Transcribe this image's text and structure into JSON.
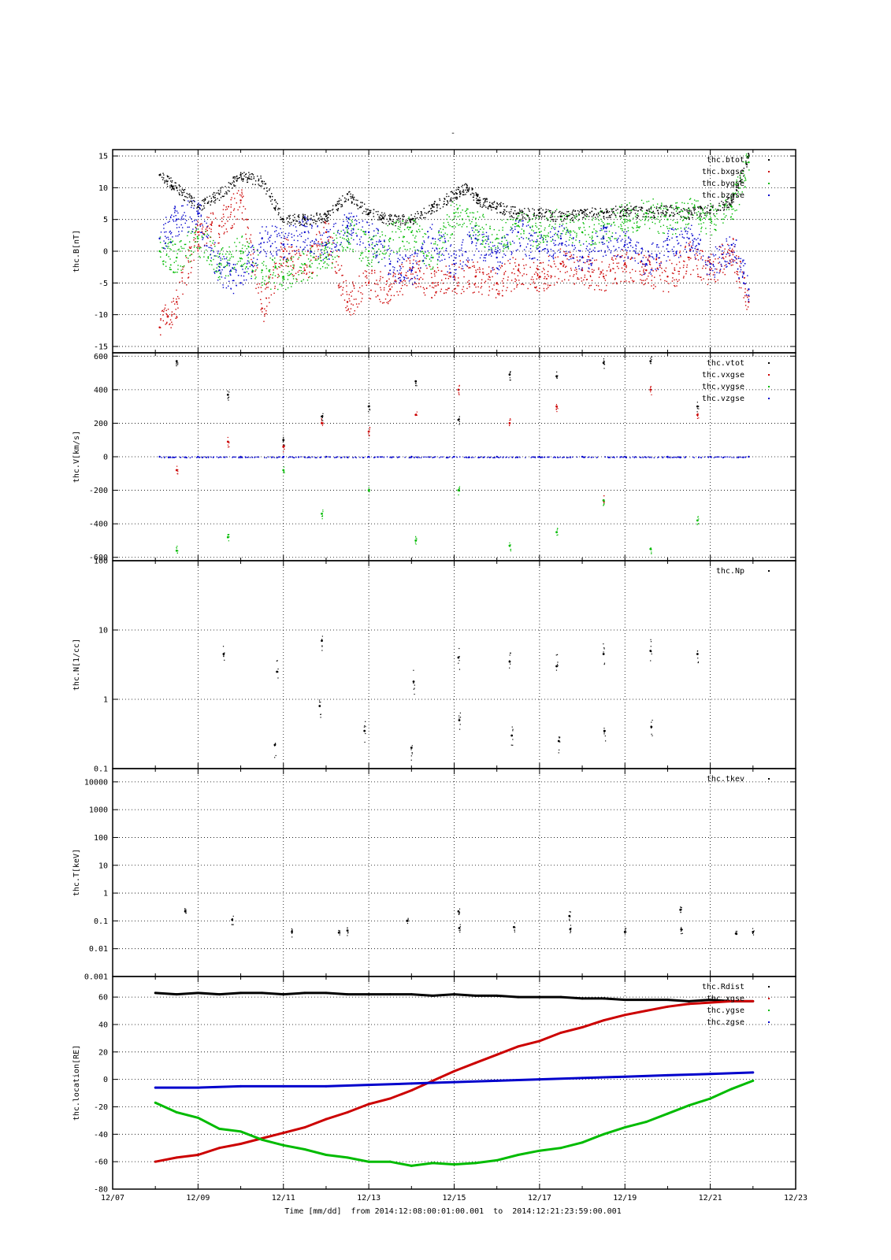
{
  "figure": {
    "title": "-",
    "xlabel": "Time [mm/dd]  from 2014:12:08:00:01:00.001  to  2014:12:21:23:59:00.001",
    "x_ticks": [
      "12/07",
      "12/09",
      "12/11",
      "12/13",
      "12/15",
      "12/17",
      "12/19",
      "12/21",
      "12/23"
    ]
  },
  "chart_data": [
    {
      "type": "scatter",
      "ylabel": "thc.B[nT]",
      "xlim": [
        "12/07",
        "12/23"
      ],
      "ylim": [
        -16,
        16
      ],
      "yscale": "linear",
      "y_ticks": [
        -15,
        -10,
        -5,
        0,
        5,
        10,
        15
      ],
      "legend_position": "top-right",
      "series": [
        {
          "name": "thc.btot",
          "color": "#000000",
          "x": [
            8.1,
            8.5,
            9.0,
            9.5,
            10.0,
            10.5,
            11.0,
            11.5,
            12.0,
            12.5,
            13.0,
            13.5,
            14.0,
            14.5,
            15.0,
            15.3,
            15.6,
            16.0,
            16.5,
            17.0,
            17.5,
            18.0,
            18.5,
            19.0,
            19.5,
            20.0,
            20.5,
            21.0,
            21.5,
            21.9
          ],
          "y": [
            12,
            10,
            7,
            9,
            12,
            11,
            5,
            5,
            5.5,
            9,
            6,
            5,
            5,
            7,
            9,
            10,
            8,
            7,
            6,
            6,
            5.5,
            6,
            6,
            6.5,
            6,
            6.5,
            6,
            6.5,
            8,
            15
          ]
        },
        {
          "name": "thc.bxgse",
          "color": "#cc0000",
          "x": [
            8.1,
            8.5,
            9.0,
            9.5,
            10.0,
            10.5,
            11.0,
            11.5,
            12.0,
            12.5,
            13.0,
            13.5,
            14.0,
            14.5,
            15.0,
            15.5,
            16.0,
            16.5,
            17.0,
            17.5,
            18.0,
            18.5,
            19.0,
            19.5,
            20.0,
            20.5,
            21.0,
            21.5,
            21.9
          ],
          "y": [
            -12,
            -8,
            3,
            4,
            8,
            -9,
            0,
            -3,
            3,
            -8,
            -5,
            -6,
            -3,
            -5,
            -4,
            -4,
            -5,
            -3,
            -4,
            -2,
            -3,
            -4,
            -2,
            -3,
            -4,
            -1,
            -3,
            0,
            -8
          ]
        },
        {
          "name": "thc.bygse",
          "color": "#00bb00",
          "x": [
            8.1,
            8.5,
            9.0,
            9.5,
            10.0,
            10.5,
            11.0,
            11.5,
            12.0,
            12.5,
            13.0,
            13.5,
            14.0,
            14.5,
            15.0,
            15.5,
            16.0,
            16.5,
            17.0,
            17.5,
            18.0,
            18.5,
            19.0,
            19.5,
            20.0,
            20.5,
            21.0,
            21.5,
            21.9
          ],
          "y": [
            0,
            -1,
            2,
            -2,
            0,
            -3,
            -4,
            -2,
            -1,
            3,
            0,
            2,
            3,
            -1,
            6,
            4,
            2,
            4,
            3,
            5,
            3,
            4,
            5,
            6,
            5,
            6,
            5,
            7,
            14
          ]
        },
        {
          "name": "thc.bzgse",
          "color": "#0000cc",
          "x": [
            8.1,
            8.5,
            9.0,
            9.5,
            10.0,
            10.5,
            11.0,
            11.5,
            12.0,
            12.5,
            13.0,
            13.5,
            14.0,
            14.5,
            15.0,
            15.5,
            16.0,
            16.5,
            17.0,
            17.5,
            18.0,
            18.5,
            19.0,
            19.5,
            20.0,
            20.5,
            21.0,
            21.5,
            21.9
          ],
          "y": [
            2,
            5,
            6,
            -3,
            -5,
            2,
            1,
            3,
            1,
            4,
            3,
            -2,
            -3,
            2,
            -2,
            2,
            -1,
            3,
            0,
            2,
            -1,
            2,
            1,
            -2,
            1,
            2,
            -2,
            1,
            -6
          ]
        }
      ]
    },
    {
      "type": "scatter",
      "ylabel": "thc.V[km/s]",
      "xlim": [
        "12/07",
        "12/23"
      ],
      "ylim": [
        -620,
        620
      ],
      "yscale": "linear",
      "y_ticks": [
        -600,
        -400,
        -200,
        0,
        200,
        400,
        600
      ],
      "legend_position": "top-right",
      "series": [
        {
          "name": "thc.vtot",
          "color": "#000000",
          "x": [
            8.5,
            9.7,
            11.0,
            11.9,
            13.0,
            14.1,
            15.1,
            16.3,
            17.4,
            18.5,
            19.6,
            20.7
          ],
          "y": [
            570,
            370,
            100,
            240,
            300,
            450,
            220,
            490,
            480,
            560,
            570,
            300
          ]
        },
        {
          "name": "thc.vxgse",
          "color": "#cc0000",
          "x": [
            8.5,
            9.7,
            11.0,
            11.9,
            13.0,
            14.1,
            15.1,
            16.3,
            17.4,
            18.5,
            19.6,
            20.7
          ],
          "y": [
            -80,
            90,
            60,
            200,
            150,
            250,
            400,
            200,
            300,
            -260,
            400,
            250
          ]
        },
        {
          "name": "thc.vygse",
          "color": "#00bb00",
          "x": [
            8.5,
            9.7,
            11.0,
            11.9,
            13.0,
            14.1,
            15.1,
            16.3,
            17.4,
            18.5,
            19.6,
            20.7
          ],
          "y": [
            -560,
            -480,
            -80,
            -340,
            -200,
            -500,
            -200,
            -530,
            -450,
            -260,
            -550,
            -380
          ]
        },
        {
          "name": "thc.vzgse",
          "color": "#0000cc",
          "x": [
            8.1,
            9.0,
            10.0,
            11.0,
            12.0,
            13.0,
            14.0,
            15.0,
            16.0,
            17.0,
            18.0,
            19.0,
            20.0,
            21.0,
            21.9
          ],
          "y": [
            0,
            0,
            0,
            0,
            0,
            0,
            0,
            0,
            0,
            0,
            0,
            0,
            0,
            0,
            0
          ]
        }
      ]
    },
    {
      "type": "scatter",
      "ylabel": "thc.N[1/cc]",
      "xlim": [
        "12/07",
        "12/23"
      ],
      "ylim": [
        0.1,
        100
      ],
      "yscale": "log",
      "y_ticks": [
        0.1,
        1,
        10,
        100
      ],
      "legend_position": "top-right",
      "series": [
        {
          "name": "thc.Np",
          "color": "#000000",
          "x": [
            9.6,
            10.8,
            10.85,
            11.85,
            11.9,
            12.9,
            14.0,
            14.05,
            15.1,
            15.12,
            16.3,
            16.35,
            17.4,
            17.45,
            18.5,
            18.52,
            19.6,
            19.62,
            20.7
          ],
          "y": [
            4.5,
            0.22,
            2.5,
            0.8,
            7,
            0.35,
            0.2,
            1.8,
            4,
            0.5,
            3.5,
            0.3,
            3,
            0.25,
            4.5,
            0.35,
            5,
            0.4,
            4.5
          ]
        }
      ]
    },
    {
      "type": "scatter",
      "ylabel": "thc.T[keV]",
      "xlim": [
        "12/07",
        "12/23"
      ],
      "ylim": [
        0.001,
        30000
      ],
      "yscale": "log",
      "y_ticks": [
        0.001,
        0.01,
        0.1,
        1,
        10,
        100,
        1000,
        10000
      ],
      "legend_position": "top-right",
      "series": [
        {
          "name": "thc.tkev",
          "color": "#000000",
          "x": [
            8.7,
            9.8,
            11.2,
            12.3,
            12.5,
            13.9,
            15.1,
            15.12,
            16.4,
            17.7,
            17.72,
            19.0,
            20.3,
            20.32,
            21.6,
            22.0
          ],
          "y": [
            0.22,
            0.11,
            0.04,
            0.038,
            0.045,
            0.1,
            0.22,
            0.055,
            0.06,
            0.15,
            0.05,
            0.04,
            0.25,
            0.05,
            0.035,
            0.04
          ]
        }
      ]
    },
    {
      "type": "line",
      "ylabel": "thc.location[RE]",
      "xlim": [
        "12/07",
        "12/23"
      ],
      "ylim": [
        -80,
        75
      ],
      "yscale": "linear",
      "y_ticks": [
        -80,
        -60,
        -40,
        -20,
        0,
        20,
        40,
        60
      ],
      "legend_position": "top-right",
      "series": [
        {
          "name": "thc.Rdist",
          "color": "#000000",
          "x": [
            8.0,
            8.5,
            9.0,
            9.5,
            10.0,
            10.5,
            11.0,
            11.5,
            12.0,
            12.5,
            13.0,
            13.5,
            14.0,
            14.5,
            15.0,
            15.5,
            16.0,
            16.5,
            17.0,
            17.5,
            18.0,
            18.5,
            19.0,
            19.5,
            20.0,
            20.5,
            21.0,
            21.5,
            22.0
          ],
          "y": [
            63,
            62,
            63,
            62,
            63,
            63,
            62,
            63,
            63,
            62,
            62,
            62,
            62,
            61,
            62,
            61,
            61,
            60,
            60,
            60,
            59,
            59,
            58,
            58,
            58,
            57,
            58,
            57,
            57
          ]
        },
        {
          "name": "thc.xgse",
          "color": "#cc0000",
          "x": [
            8.0,
            8.5,
            9.0,
            9.5,
            10.0,
            10.5,
            11.0,
            11.5,
            12.0,
            12.5,
            13.0,
            13.5,
            14.0,
            14.5,
            15.0,
            15.5,
            16.0,
            16.5,
            17.0,
            17.5,
            18.0,
            18.5,
            19.0,
            19.5,
            20.0,
            20.5,
            21.0,
            21.5,
            22.0
          ],
          "y": [
            -60,
            -57,
            -55,
            -50,
            -47,
            -43,
            -39,
            -35,
            -29,
            -24,
            -18,
            -14,
            -8,
            -1,
            6,
            12,
            18,
            24,
            28,
            34,
            38,
            43,
            47,
            50,
            53,
            55,
            56,
            57,
            57
          ]
        },
        {
          "name": "thc.ygse",
          "color": "#00bb00",
          "x": [
            8.0,
            8.5,
            9.0,
            9.5,
            10.0,
            10.5,
            11.0,
            11.5,
            12.0,
            12.5,
            13.0,
            13.5,
            14.0,
            14.5,
            15.0,
            15.5,
            16.0,
            16.5,
            17.0,
            17.5,
            18.0,
            18.5,
            19.0,
            19.5,
            20.0,
            20.5,
            21.0,
            21.5,
            22.0
          ],
          "y": [
            -17,
            -24,
            -28,
            -36,
            -38,
            -44,
            -48,
            -51,
            -55,
            -57,
            -60,
            -60,
            -63,
            -61,
            -62,
            -61,
            -59,
            -55,
            -52,
            -50,
            -46,
            -40,
            -35,
            -31,
            -25,
            -19,
            -14,
            -7,
            -1
          ]
        },
        {
          "name": "thc.zgse",
          "color": "#0000cc",
          "x": [
            8.0,
            9.0,
            10.0,
            11.0,
            12.0,
            13.0,
            14.0,
            15.0,
            16.0,
            17.0,
            18.0,
            19.0,
            20.0,
            21.0,
            22.0
          ],
          "y": [
            -6,
            -6,
            -5,
            -5,
            -5,
            -4,
            -3,
            -2,
            -1,
            0,
            1,
            2,
            3,
            4,
            5
          ]
        }
      ]
    }
  ]
}
